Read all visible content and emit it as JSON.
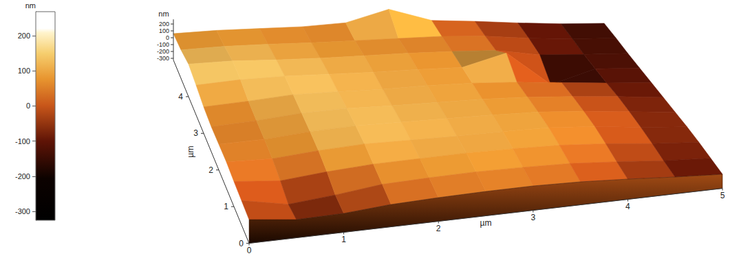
{
  "chart_data": {
    "type": "surface",
    "x_label": "µm",
    "y_label": "µm",
    "z_label": "nm",
    "x": [
      0,
      0.5,
      1,
      1.5,
      2,
      2.5,
      3,
      3.5,
      4,
      4.5,
      5
    ],
    "y": [
      0,
      0.5,
      1,
      1.5,
      2,
      2.5,
      3,
      3.5,
      4,
      4.5,
      5
    ],
    "z": [
      [
        20,
        -60,
        -50,
        0,
        20,
        30,
        30,
        10,
        -30,
        -80,
        -120
      ],
      [
        30,
        -100,
        -40,
        40,
        60,
        70,
        60,
        40,
        -10,
        -70,
        -110
      ],
      [
        40,
        -20,
        40,
        80,
        90,
        100,
        90,
        70,
        20,
        -50,
        -100
      ],
      [
        60,
        40,
        90,
        120,
        110,
        100,
        100,
        90,
        40,
        -40,
        -100
      ],
      [
        50,
        60,
        110,
        130,
        120,
        110,
        100,
        80,
        30,
        -40,
        -110
      ],
      [
        40,
        70,
        120,
        130,
        110,
        100,
        90,
        60,
        10,
        -50,
        -120
      ],
      [
        60,
        90,
        130,
        120,
        100,
        100,
        80,
        40,
        -20,
        -80,
        -130
      ],
      [
        110,
        140,
        140,
        120,
        100,
        90,
        70,
        230,
        -280,
        -100,
        -140
      ],
      [
        150,
        150,
        120,
        100,
        90,
        80,
        60,
        30,
        -80,
        -120,
        -150
      ],
      [
        90,
        100,
        90,
        70,
        60,
        50,
        40,
        0,
        -70,
        -120,
        -150
      ],
      [
        60,
        70,
        60,
        50,
        70,
        230,
        30,
        -20,
        -80,
        -130,
        -160
      ]
    ],
    "xlim": [
      0,
      5
    ],
    "xticks": [
      0,
      1,
      2,
      3,
      4,
      5
    ],
    "ylim": [
      0,
      5
    ],
    "yticks": [
      0,
      1,
      2,
      3,
      4
    ],
    "zlim": [
      -325,
      268
    ],
    "zticks": [
      -300,
      -200,
      -100,
      0,
      100,
      200
    ],
    "color_bar": {
      "label": "nm",
      "range": [
        -325,
        268
      ],
      "ticks": [
        -300,
        -200,
        -100,
        0,
        100,
        200
      ]
    }
  }
}
